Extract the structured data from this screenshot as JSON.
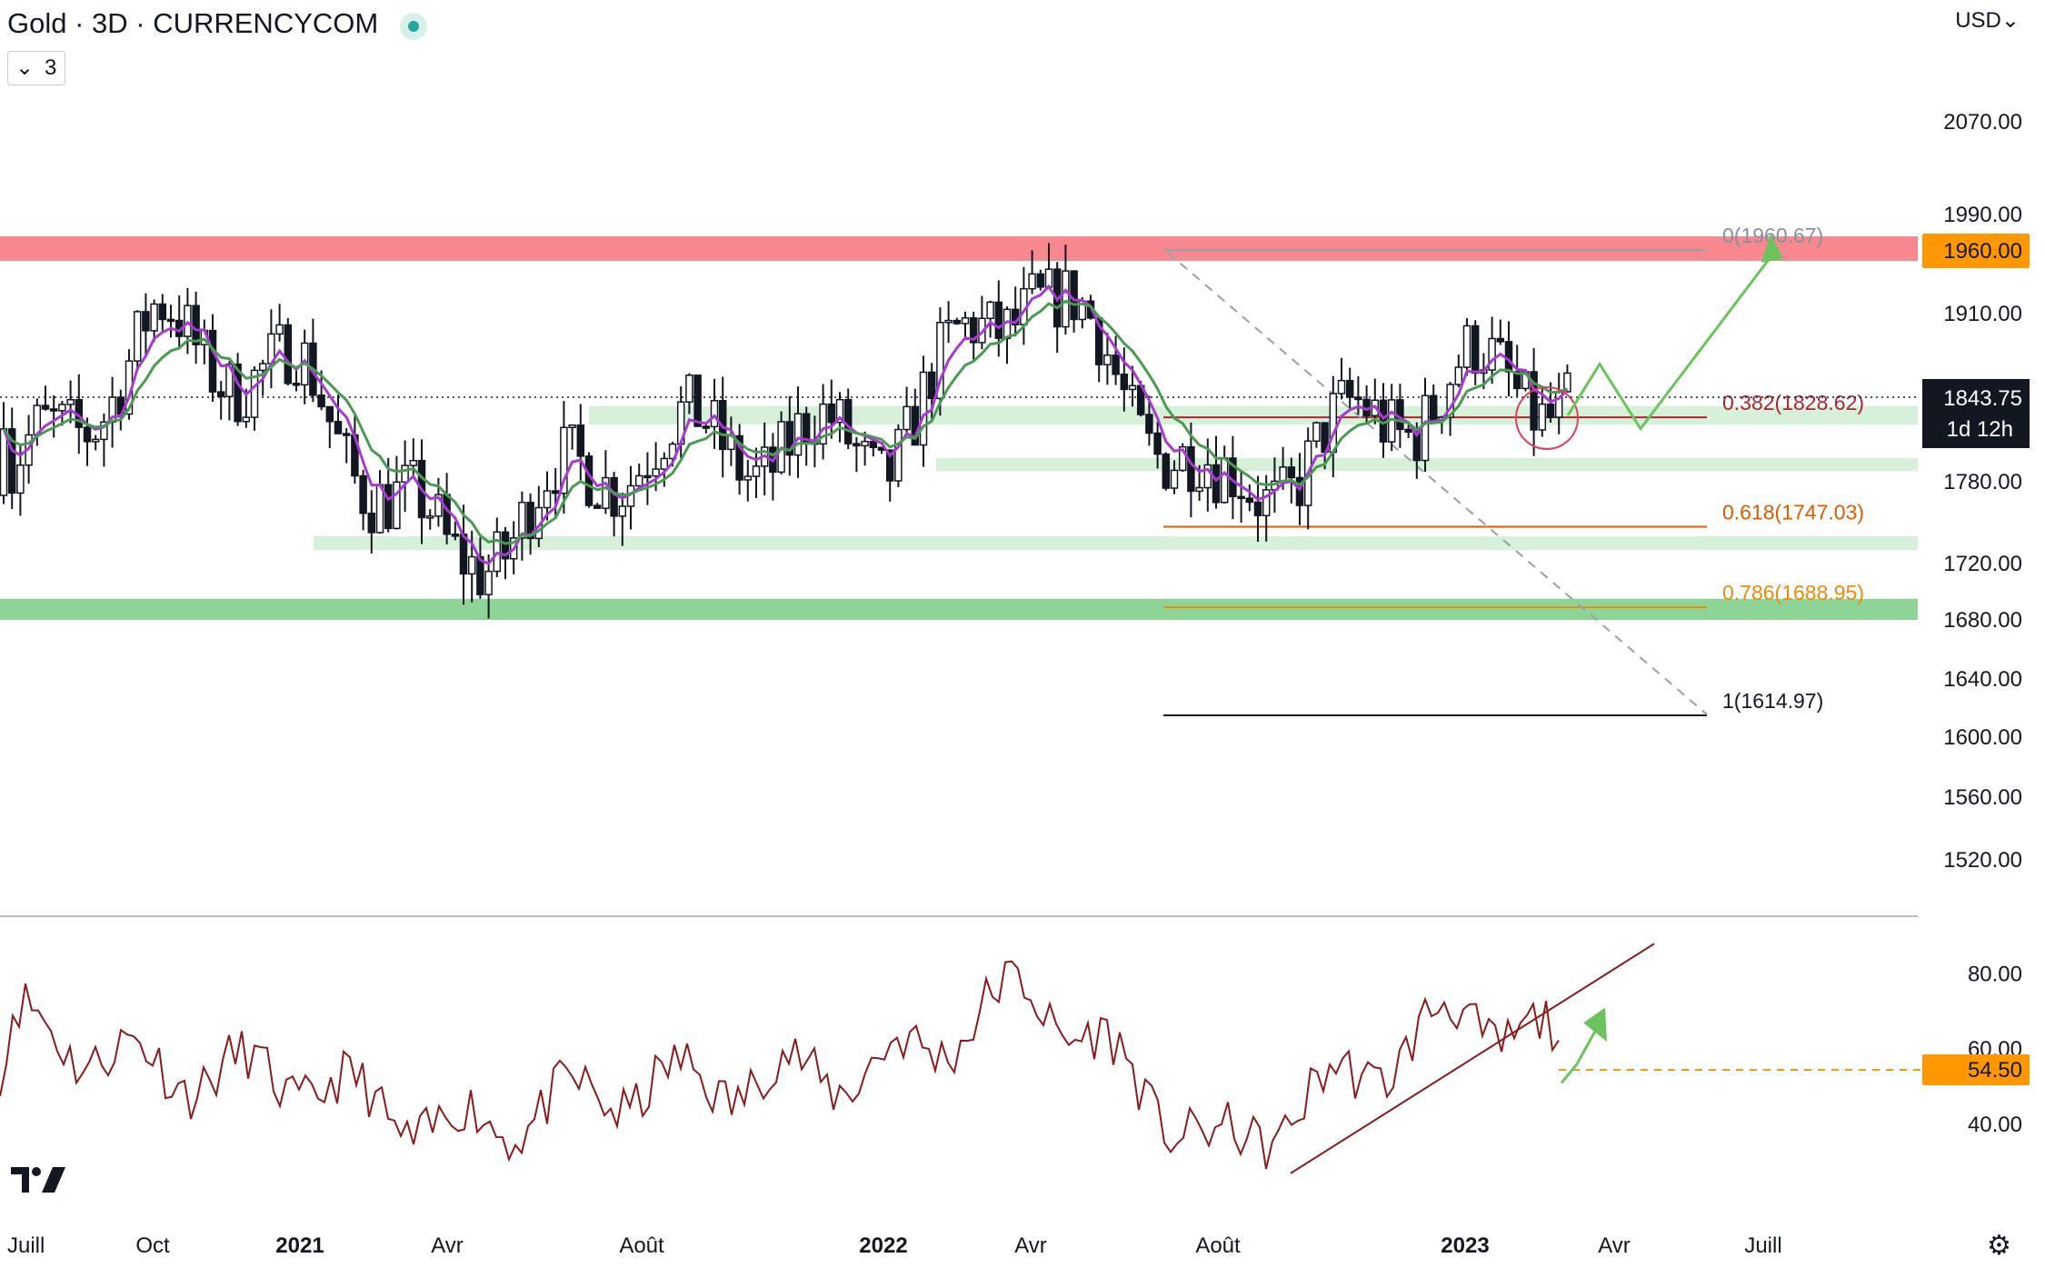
{
  "header": {
    "title": "Gold · 3D · CURRENCYCOM",
    "interval_value": "3",
    "currency": "USD",
    "currency_icon": "chevron-down-icon"
  },
  "colors": {
    "resistance_zone": "#f7888f",
    "support_zone": "#8fd497",
    "light_zone": "#d6f0d9",
    "ema_purple": "#a63ad1",
    "ema_green": "#4a9a52",
    "rsi_line": "#8b1a1a",
    "arrow": "#6cc35e",
    "orange_label": "#ff9800",
    "price_label": "#131722"
  },
  "price_axis": {
    "ticks": [
      "2070.00",
      "1990.00",
      "1910.00",
      "1780.00",
      "1720.00",
      "1680.00",
      "1640.00",
      "1600.00",
      "1560.00",
      "1520.00"
    ]
  },
  "rsi_axis": {
    "ticks": [
      "80.00",
      "60.00",
      "40.00"
    ]
  },
  "time_axis": {
    "ticks": [
      "Juill",
      "Oct",
      "2021",
      "Avr",
      "Août",
      "2022",
      "Avr",
      "Août",
      "2023",
      "Avr",
      "Juill"
    ]
  },
  "labels": {
    "resistance_level": "1960.00",
    "current_price": "1843.75",
    "countdown": "1d 12h",
    "rsi_level": "54.50"
  },
  "fibonacci": [
    {
      "label": "0(1960.67)",
      "color": "#8a8f9c"
    },
    {
      "label": "0.382(1828.62)",
      "color": "#b0242f"
    },
    {
      "label": "0.618(1747.03)",
      "color": "#e05a00"
    },
    {
      "label": "0.786(1688.95)",
      "color": "#f0880a"
    },
    {
      "label": "1(1614.97)",
      "color": "#131722"
    }
  ],
  "chart_data": [
    {
      "type": "candlestick",
      "title": "Gold · 3D · CURRENCYCOM",
      "ylim": [
        1480,
        2130
      ],
      "x_axis_ticks": [
        "Juill",
        "Oct",
        "2021",
        "Avr",
        "Août",
        "2022",
        "Avr",
        "Août",
        "2023",
        "Avr",
        "Juill"
      ],
      "horizontal_levels": [
        1960,
        1843.75,
        1828.62,
        1747.03,
        1688.95,
        1614.97
      ],
      "zones": [
        {
          "name": "resistance",
          "from": 1952,
          "to": 1972
        },
        {
          "name": "support",
          "from": 1680,
          "to": 1695
        },
        {
          "name": "light",
          "from": 1823,
          "to": 1837
        },
        {
          "name": "light",
          "from": 1788,
          "to": 1798
        },
        {
          "name": "light",
          "from": 1730,
          "to": 1740
        }
      ],
      "close_path_anchors": [
        {
          "x": "Juill",
          "y": 1770
        },
        {
          "x": "Oct",
          "y": 1895
        },
        {
          "x": "2021",
          "y": 1855
        },
        {
          "x": "Avr",
          "y": 1720
        },
        {
          "x": "Août",
          "y": 1810
        },
        {
          "x": "2022",
          "y": 1805
        },
        {
          "x": "Avr",
          "y": 1940
        },
        {
          "x": "Août",
          "y": 1765
        },
        {
          "x": "2023",
          "y": 1860
        },
        {
          "x": "Avr",
          "y": 1843
        }
      ]
    },
    {
      "type": "line",
      "title": "RSI",
      "ylim": [
        20,
        90
      ],
      "levels": [
        54.5
      ],
      "series_anchors": [
        {
          "x": "Juill",
          "y": 68
        },
        {
          "x": "Oct",
          "y": 55
        },
        {
          "x": "2021",
          "y": 52
        },
        {
          "x": "Avr",
          "y": 38
        },
        {
          "x": "Août",
          "y": 50
        },
        {
          "x": "2022",
          "y": 55
        },
        {
          "x": "Avr",
          "y": 76
        },
        {
          "x": "Août",
          "y": 32
        },
        {
          "x": "2023",
          "y": 70
        },
        {
          "x": "Avr",
          "y": 54.5
        }
      ]
    }
  ]
}
